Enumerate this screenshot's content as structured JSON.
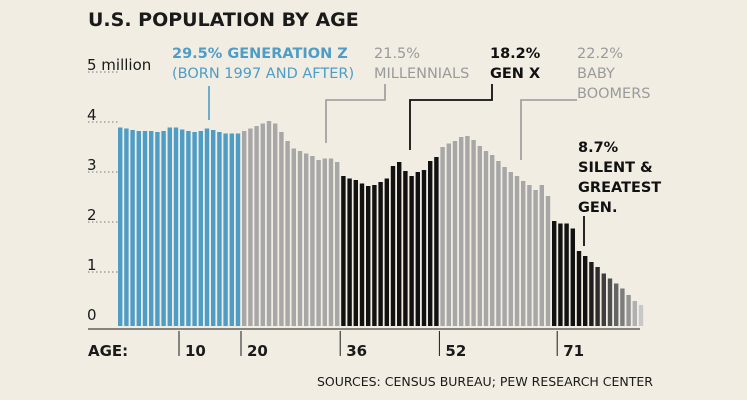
{
  "chart_data": {
    "type": "bar",
    "title": "U.S. POPULATION BY AGE",
    "y_unit_label": "5 million",
    "yticks": [
      "0",
      "1",
      "2",
      "3",
      "4",
      "5 million"
    ],
    "ylim": [
      0,
      5
    ],
    "x_axis_label": "AGE:",
    "xticks": [
      "10",
      "20",
      "36",
      "52",
      "71"
    ],
    "source": "SOURCES: CENSUS BUREAU; PEW RESEARCH CENTER",
    "groups": [
      {
        "name": "GENERATION Z",
        "pct": "29.5%",
        "lines": [
          "29.5% GENERATION Z",
          "(BORN 1997 AND AFTER)"
        ],
        "color": "#4d9dc6"
      },
      {
        "name": "MILLENNIALS",
        "pct": "21.5%",
        "lines": [
          "21.5%",
          "MILLENNIALS"
        ],
        "color": "#a7a7a7"
      },
      {
        "name": "GEN X",
        "pct": "18.2%",
        "lines": [
          "18.2%",
          "GEN X"
        ],
        "color": "#111111"
      },
      {
        "name": "BABY BOOMERS",
        "pct": "22.2%",
        "lines": [
          "22.2%",
          "BABY",
          "BOOMERS"
        ],
        "color": "#a7a7a7"
      },
      {
        "name": "SILENT & GREATEST GEN.",
        "pct": "8.7%",
        "lines": [
          "8.7%",
          "SILENT &",
          "GREATEST",
          "GEN."
        ],
        "color": "#111111"
      }
    ],
    "annotation_colors": [
      "#4d9dc6",
      "#9a9a9a",
      "#111111",
      "#9a9a9a",
      "#111111"
    ],
    "group_counts": [
      20,
      16,
      16,
      18,
      4
    ],
    "values": [
      3.97,
      3.95,
      3.92,
      3.9,
      3.9,
      3.9,
      3.88,
      3.9,
      3.97,
      3.97,
      3.93,
      3.9,
      3.88,
      3.9,
      3.95,
      3.92,
      3.88,
      3.85,
      3.85,
      3.85,
      3.9,
      3.95,
      4.0,
      4.05,
      4.1,
      4.05,
      3.88,
      3.7,
      3.55,
      3.5,
      3.45,
      3.4,
      3.32,
      3.35,
      3.35,
      3.28,
      3.0,
      2.95,
      2.92,
      2.85,
      2.8,
      2.82,
      2.88,
      2.95,
      3.2,
      3.28,
      3.1,
      3.0,
      3.08,
      3.12,
      3.3,
      3.38,
      3.58,
      3.65,
      3.7,
      3.78,
      3.8,
      3.72,
      3.6,
      3.5,
      3.42,
      3.3,
      3.18,
      3.08,
      3.0,
      2.9,
      2.82,
      2.72,
      2.82,
      2.6,
      2.1,
      2.05,
      2.05,
      1.95,
      1.5,
      1.4,
      1.28,
      1.18,
      1.05,
      0.95,
      0.85,
      0.75,
      0.62,
      0.5,
      0.42
    ],
    "tail_colors": [
      "#111111",
      "#111111",
      "#1d1d1d",
      "#2d2d2d",
      "#3e3e3e",
      "#505050",
      "#646464",
      "#7c7c7c",
      "#959595",
      "#b0b0b0",
      "#c8c8c8"
    ]
  }
}
